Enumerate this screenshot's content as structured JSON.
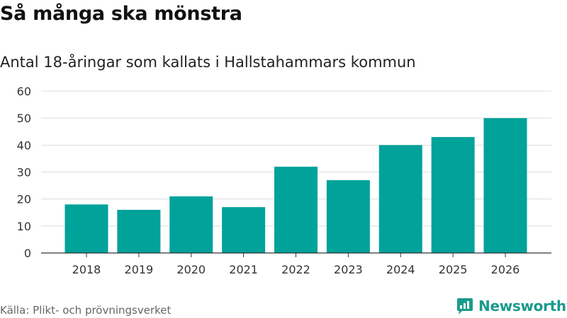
{
  "header": {
    "title": "Så många ska mönstra",
    "subtitle": "Antal 18-åringar som kallats i Hallstahammars kommun"
  },
  "footer": {
    "source": "Källa: Plikt- och prövningsverket",
    "brand": "Newsworthy"
  },
  "colors": {
    "bar": "#00a29a",
    "grid": "#dddddd",
    "axis": "#333333",
    "brand": "#1a9a8c"
  },
  "chart_data": {
    "type": "bar",
    "title": "Så många ska mönstra",
    "subtitle": "Antal 18-åringar som kallats i Hallstahammars kommun",
    "xlabel": "",
    "ylabel": "",
    "categories": [
      "2018",
      "2019",
      "2020",
      "2021",
      "2022",
      "2023",
      "2024",
      "2025",
      "2026"
    ],
    "values": [
      18,
      16,
      21,
      17,
      32,
      27,
      40,
      43,
      50
    ],
    "ylim": [
      0,
      60
    ],
    "yticks": [
      0,
      10,
      20,
      30,
      40,
      50,
      60
    ],
    "grid": true,
    "legend": "none"
  }
}
